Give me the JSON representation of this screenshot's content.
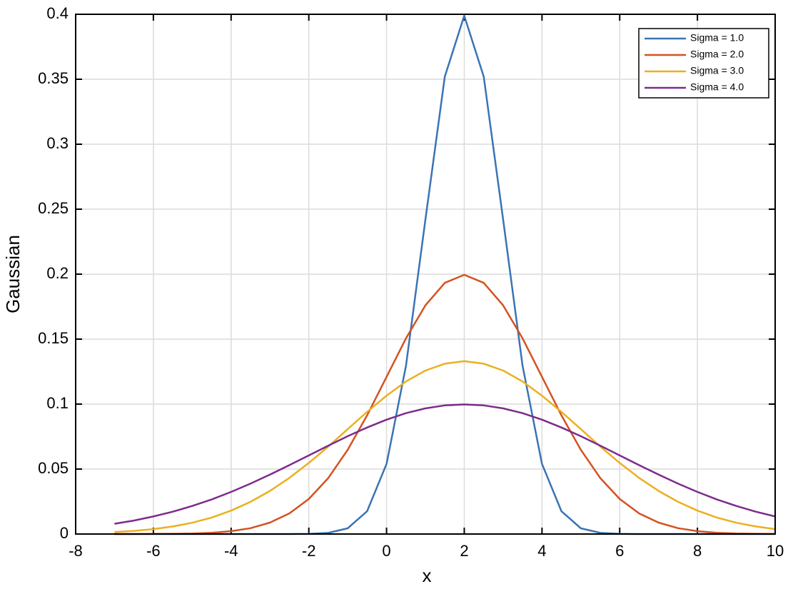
{
  "chart_data": {
    "type": "line",
    "xlabel": "x",
    "ylabel": "Gaussian",
    "x": [
      -7,
      -6.5,
      -6,
      -5.5,
      -5,
      -4.5,
      -4,
      -3.5,
      -3,
      -2.5,
      -2,
      -1.5,
      -1,
      -0.5,
      0,
      0.5,
      1,
      1.5,
      2,
      2.5,
      3,
      3.5,
      4,
      4.5,
      5,
      5.5,
      6,
      6.5,
      7,
      7.5,
      8,
      8.5,
      9,
      9.5,
      10
    ],
    "series": [
      {
        "name": "Sigma = 1.0",
        "color": "#3a74b3",
        "values": [
          0,
          0,
          0,
          0,
          0,
          0,
          0,
          0,
          0,
          0,
          0.0001,
          0.0009,
          0.0044,
          0.0175,
          0.054,
          0.1295,
          0.242,
          0.3521,
          0.3989,
          0.3521,
          0.242,
          0.1295,
          0.054,
          0.0175,
          0.0044,
          0.0009,
          0.0001,
          0,
          0,
          0,
          0,
          0,
          0,
          0,
          0
        ]
      },
      {
        "name": "Sigma = 2.0",
        "color": "#d35320",
        "values": [
          0,
          0,
          0.0001,
          0.0002,
          0.0004,
          0.001,
          0.0022,
          0.0045,
          0.0088,
          0.0159,
          0.027,
          0.0431,
          0.0648,
          0.0913,
          0.121,
          0.1506,
          0.176,
          0.1933,
          0.1995,
          0.1933,
          0.176,
          0.1506,
          0.121,
          0.0913,
          0.0648,
          0.0431,
          0.027,
          0.0159,
          0.0088,
          0.0045,
          0.0022,
          0.001,
          0.0004,
          0.0002,
          0.0001
        ]
      },
      {
        "name": "Sigma = 3.0",
        "color": "#ebb01f",
        "values": [
          0.0015,
          0.0024,
          0.0038,
          0.0058,
          0.0087,
          0.0127,
          0.018,
          0.0248,
          0.0332,
          0.0432,
          0.0547,
          0.0673,
          0.0807,
          0.094,
          0.1065,
          0.1174,
          0.1258,
          0.1311,
          0.133,
          0.1311,
          0.1258,
          0.1174,
          0.1065,
          0.094,
          0.0807,
          0.0673,
          0.0547,
          0.0432,
          0.0332,
          0.0248,
          0.018,
          0.0127,
          0.0087,
          0.0058,
          0.0038
        ]
      },
      {
        "name": "Sigma = 4.0",
        "color": "#7e2b8e",
        "values": [
          0.0079,
          0.0104,
          0.0135,
          0.0172,
          0.0216,
          0.0266,
          0.0324,
          0.0388,
          0.0457,
          0.053,
          0.0605,
          0.068,
          0.0753,
          0.082,
          0.088,
          0.093,
          0.0967,
          0.099,
          0.0997,
          0.099,
          0.0967,
          0.093,
          0.088,
          0.082,
          0.0753,
          0.068,
          0.0605,
          0.053,
          0.0457,
          0.0388,
          0.0324,
          0.0266,
          0.0216,
          0.0172,
          0.0135
        ]
      }
    ],
    "xlim": [
      -8,
      10
    ],
    "xticks": [
      -8,
      -6,
      -4,
      -2,
      0,
      2,
      4,
      6,
      8,
      10
    ],
    "ylim": [
      0,
      0.4
    ],
    "yticks": [
      0,
      0.05,
      0.1,
      0.15,
      0.2,
      0.25,
      0.3,
      0.35,
      0.4
    ],
    "grid": true,
    "legend": "top-right"
  }
}
